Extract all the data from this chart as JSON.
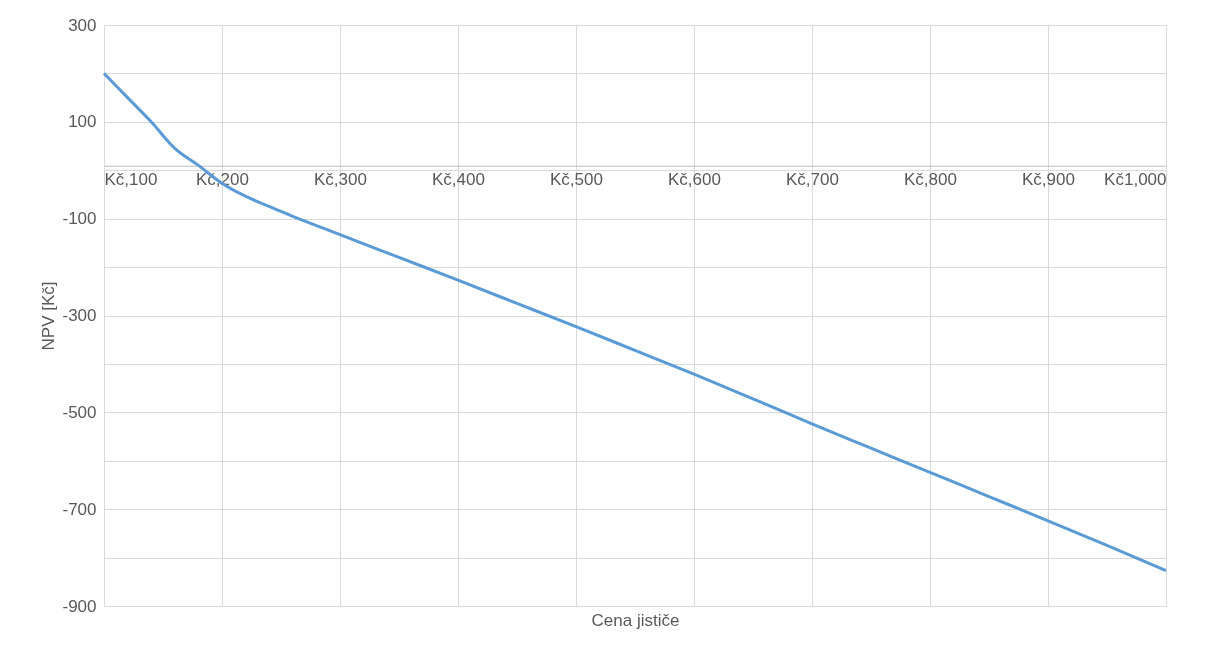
{
  "chart_data": {
    "type": "line",
    "xlabel": "Cena jističe",
    "ylabel": "NPV [Kč]",
    "x": [
      100,
      120,
      140,
      160,
      180,
      200,
      250,
      300,
      350,
      400,
      450,
      500,
      550,
      600,
      650,
      700,
      750,
      800,
      850,
      900,
      950,
      1000
    ],
    "series": [
      {
        "color": "#5b9bd5",
        "values": [
          200,
          150,
          100,
          45,
          10,
          -27,
          -85,
          -133,
          -180,
          -227,
          -275,
          -323,
          -372,
          -421,
          -472,
          -524,
          -574,
          -624,
          -674,
          -724,
          -775,
          -827
        ]
      }
    ],
    "xlim": [
      100,
      1000
    ],
    "xticks": [
      {
        "value": 100,
        "label": "Kč,100"
      },
      {
        "value": 200,
        "label": "Kč,200"
      },
      {
        "value": 300,
        "label": "Kč,300"
      },
      {
        "value": 400,
        "label": "Kč,400"
      },
      {
        "value": 500,
        "label": "Kč,500"
      },
      {
        "value": 600,
        "label": "Kč,600"
      },
      {
        "value": 700,
        "label": "Kč,700"
      },
      {
        "value": 800,
        "label": "Kč,800"
      },
      {
        "value": 900,
        "label": "Kč,900"
      },
      {
        "value": 1000,
        "label": "Kč1,000"
      }
    ],
    "ylim": [
      -900,
      300
    ],
    "yticks": [
      300,
      {
        "value": 200,
        "label": null
      },
      100,
      {
        "value": 0,
        "label": null
      },
      -100,
      {
        "value": -200,
        "label": null
      },
      -300,
      {
        "value": -400,
        "label": null
      },
      -500,
      {
        "value": -600,
        "label": null
      },
      -700,
      {
        "value": -800,
        "label": null
      },
      -900
    ],
    "grid": true,
    "marker": "none",
    "line_style": "solid"
  }
}
